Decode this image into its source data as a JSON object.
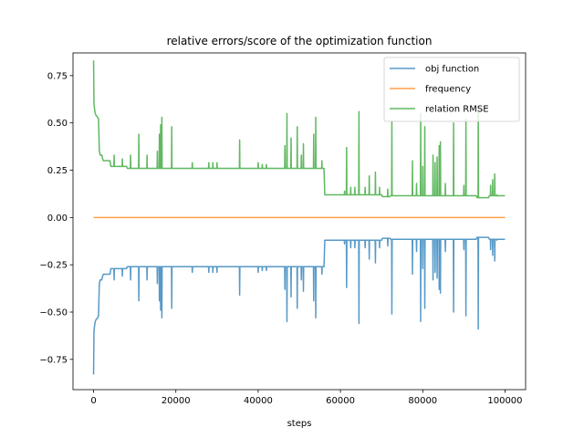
{
  "chart_data": {
    "type": "line",
    "title": "relative errors/score of the optimization function",
    "xlabel": "steps",
    "ylabel": "",
    "xlim": [
      -5000,
      105000
    ],
    "ylim": [
      -0.91,
      0.87
    ],
    "xticks": [
      0,
      20000,
      40000,
      60000,
      80000,
      100000
    ],
    "xtick_labels": [
      "0",
      "20000",
      "40000",
      "60000",
      "80000",
      "100000"
    ],
    "yticks": [
      -0.75,
      -0.5,
      -0.25,
      0.0,
      0.25,
      0.5,
      0.75
    ],
    "ytick_labels": [
      "−0.75",
      "−0.50",
      "−0.25",
      "0.00",
      "0.25",
      "0.50",
      "0.75"
    ],
    "grid": false,
    "legend_position": "top-right",
    "series": [
      {
        "name": "obj function",
        "color": "#1f77b4",
        "baseline": [
          [
            0,
            -0.83
          ],
          [
            100,
            -0.6
          ],
          [
            200,
            -0.58
          ],
          [
            400,
            -0.55
          ],
          [
            600,
            -0.54
          ],
          [
            1000,
            -0.53
          ],
          [
            1200,
            -0.52
          ],
          [
            1400,
            -0.35
          ],
          [
            1600,
            -0.33
          ],
          [
            2000,
            -0.33
          ],
          [
            2200,
            -0.31
          ],
          [
            2400,
            -0.3
          ],
          [
            4000,
            -0.3
          ],
          [
            4200,
            -0.27
          ],
          [
            8000,
            -0.27
          ],
          [
            8200,
            -0.26
          ],
          [
            56000,
            -0.26
          ],
          [
            56200,
            -0.12
          ],
          [
            70000,
            -0.12
          ],
          [
            70200,
            -0.11
          ],
          [
            72000,
            -0.11
          ],
          [
            72200,
            -0.115
          ],
          [
            93000,
            -0.115
          ],
          [
            93200,
            -0.105
          ],
          [
            96000,
            -0.105
          ],
          [
            96200,
            -0.115
          ],
          [
            100000,
            -0.115
          ]
        ],
        "spikes": [
          [
            5000,
            -0.33
          ],
          [
            7000,
            -0.31
          ],
          [
            9000,
            -0.33
          ],
          [
            11000,
            -0.44
          ],
          [
            13000,
            -0.33
          ],
          [
            15500,
            -0.35
          ],
          [
            16000,
            -0.44
          ],
          [
            16300,
            -0.49
          ],
          [
            16600,
            -0.53
          ],
          [
            19000,
            -0.48
          ],
          [
            24000,
            -0.29
          ],
          [
            28000,
            -0.29
          ],
          [
            29000,
            -0.29
          ],
          [
            30000,
            -0.29
          ],
          [
            35500,
            -0.41
          ],
          [
            40000,
            -0.29
          ],
          [
            41000,
            -0.28
          ],
          [
            42000,
            -0.28
          ],
          [
            46500,
            -0.38
          ],
          [
            47000,
            -0.55
          ],
          [
            48000,
            -0.42
          ],
          [
            49500,
            -0.48
          ],
          [
            50500,
            -0.33
          ],
          [
            51000,
            -0.39
          ],
          [
            53500,
            -0.44
          ],
          [
            54000,
            -0.53
          ],
          [
            55500,
            -0.3
          ],
          [
            61000,
            -0.14
          ],
          [
            61500,
            -0.37
          ],
          [
            62500,
            -0.16
          ],
          [
            63500,
            -0.16
          ],
          [
            64500,
            -0.56
          ],
          [
            66000,
            -0.16
          ],
          [
            67000,
            -0.22
          ],
          [
            68500,
            -0.24
          ],
          [
            69500,
            -0.16
          ],
          [
            71500,
            -0.15
          ],
          [
            72500,
            -0.51
          ],
          [
            77500,
            -0.3
          ],
          [
            78500,
            -0.18
          ],
          [
            79500,
            -0.55
          ],
          [
            80000,
            -0.27
          ],
          [
            80500,
            -0.48
          ],
          [
            82500,
            -0.33
          ],
          [
            83000,
            -0.29
          ],
          [
            83500,
            -0.32
          ],
          [
            84000,
            -0.38
          ],
          [
            84300,
            -0.4
          ],
          [
            85500,
            -0.18
          ],
          [
            87500,
            -0.5
          ],
          [
            90000,
            -0.17
          ],
          [
            90500,
            -0.52
          ],
          [
            93500,
            -0.59
          ],
          [
            96500,
            -0.17
          ],
          [
            97000,
            -0.2
          ],
          [
            97500,
            -0.23
          ],
          [
            98000,
            -0.12
          ]
        ]
      },
      {
        "name": "frequency",
        "color": "#ff7f0e",
        "baseline": [
          [
            0,
            0.0
          ],
          [
            100000,
            0.0
          ]
        ],
        "spikes": []
      },
      {
        "name": "relation RMSE",
        "color": "#2ca02c",
        "baseline": [
          [
            0,
            0.83
          ],
          [
            100,
            0.6
          ],
          [
            200,
            0.58
          ],
          [
            400,
            0.55
          ],
          [
            600,
            0.54
          ],
          [
            1000,
            0.53
          ],
          [
            1200,
            0.52
          ],
          [
            1400,
            0.35
          ],
          [
            1600,
            0.33
          ],
          [
            2000,
            0.33
          ],
          [
            2200,
            0.31
          ],
          [
            2400,
            0.3
          ],
          [
            4000,
            0.3
          ],
          [
            4200,
            0.27
          ],
          [
            8000,
            0.27
          ],
          [
            8200,
            0.26
          ],
          [
            56000,
            0.26
          ],
          [
            56200,
            0.12
          ],
          [
            70000,
            0.12
          ],
          [
            70200,
            0.11
          ],
          [
            72000,
            0.11
          ],
          [
            72200,
            0.115
          ],
          [
            93000,
            0.115
          ],
          [
            93200,
            0.105
          ],
          [
            96000,
            0.105
          ],
          [
            96200,
            0.115
          ],
          [
            100000,
            0.115
          ]
        ],
        "spikes": [
          [
            5000,
            0.33
          ],
          [
            7000,
            0.31
          ],
          [
            9000,
            0.33
          ],
          [
            11000,
            0.44
          ],
          [
            13000,
            0.33
          ],
          [
            15500,
            0.35
          ],
          [
            16000,
            0.44
          ],
          [
            16300,
            0.49
          ],
          [
            16600,
            0.53
          ],
          [
            19000,
            0.48
          ],
          [
            24000,
            0.29
          ],
          [
            28000,
            0.29
          ],
          [
            29000,
            0.29
          ],
          [
            30000,
            0.29
          ],
          [
            35500,
            0.41
          ],
          [
            40000,
            0.29
          ],
          [
            41000,
            0.28
          ],
          [
            42000,
            0.28
          ],
          [
            46500,
            0.38
          ],
          [
            47000,
            0.55
          ],
          [
            48000,
            0.42
          ],
          [
            49500,
            0.48
          ],
          [
            50500,
            0.33
          ],
          [
            51000,
            0.39
          ],
          [
            53500,
            0.44
          ],
          [
            54000,
            0.53
          ],
          [
            55500,
            0.3
          ],
          [
            61000,
            0.14
          ],
          [
            61500,
            0.37
          ],
          [
            62500,
            0.16
          ],
          [
            63500,
            0.16
          ],
          [
            64500,
            0.56
          ],
          [
            66000,
            0.16
          ],
          [
            67000,
            0.22
          ],
          [
            68500,
            0.24
          ],
          [
            69500,
            0.16
          ],
          [
            71500,
            0.15
          ],
          [
            72500,
            0.51
          ],
          [
            77500,
            0.3
          ],
          [
            78500,
            0.18
          ],
          [
            79500,
            0.55
          ],
          [
            80000,
            0.27
          ],
          [
            80500,
            0.48
          ],
          [
            82500,
            0.33
          ],
          [
            83000,
            0.29
          ],
          [
            83500,
            0.32
          ],
          [
            84000,
            0.38
          ],
          [
            84300,
            0.4
          ],
          [
            85500,
            0.18
          ],
          [
            87500,
            0.5
          ],
          [
            90000,
            0.17
          ],
          [
            90500,
            0.52
          ],
          [
            93500,
            0.59
          ],
          [
            96500,
            0.17
          ],
          [
            97000,
            0.2
          ],
          [
            97500,
            0.23
          ],
          [
            98000,
            0.12
          ]
        ]
      }
    ]
  }
}
